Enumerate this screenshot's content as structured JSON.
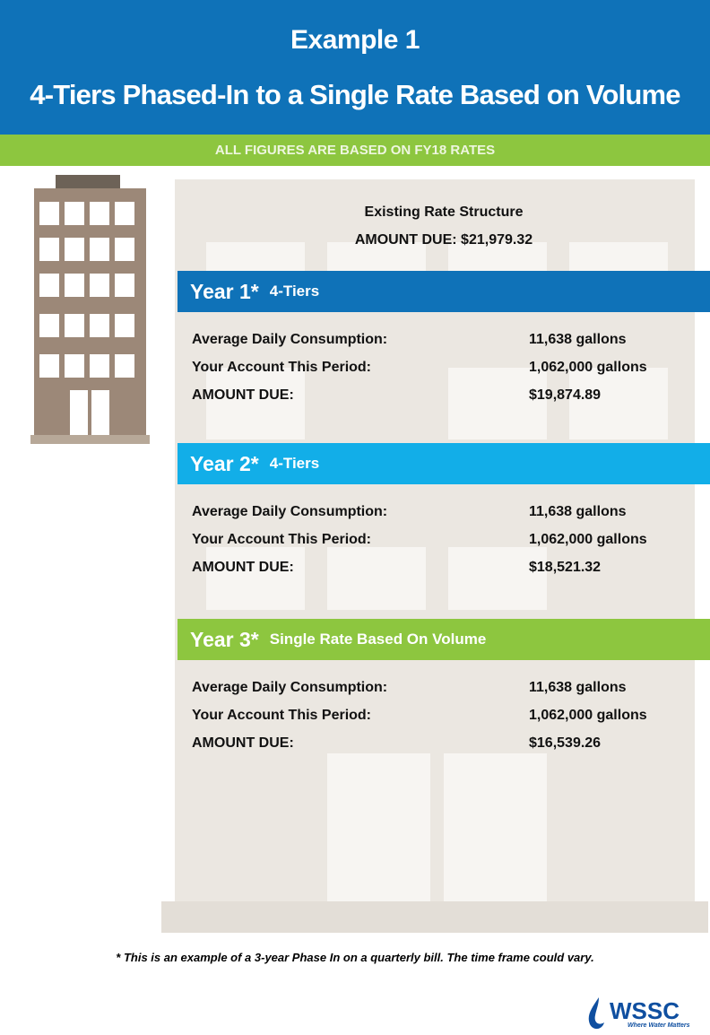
{
  "header": {
    "title": "Example 1",
    "subtitle": "4-Tiers Phased-In to a Single Rate Based on Volume"
  },
  "banner": "ALL FIGURES ARE BASED ON FY18 RATES",
  "existing": {
    "label": "Existing Rate Structure",
    "amount": "AMOUNT DUE:  $21,979.32"
  },
  "years": [
    {
      "year": "Year 1*",
      "plan": "4-Tiers",
      "color": "#0f72b8",
      "rows": [
        [
          "Average Daily Consumption:",
          "11,638 gallons"
        ],
        [
          "Your Account This Period:",
          "1,062,000 gallons"
        ],
        [
          "AMOUNT DUE:",
          "$19,874.89"
        ]
      ]
    },
    {
      "year": "Year 2*",
      "plan": "4-Tiers",
      "color": "#12aee8",
      "rows": [
        [
          "Average Daily Consumption:",
          "11,638 gallons"
        ],
        [
          "Your Account This Period:",
          "1,062,000 gallons"
        ],
        [
          "AMOUNT DUE:",
          "$18,521.32"
        ]
      ]
    },
    {
      "year": "Year 3*",
      "plan": "Single Rate Based On Volume",
      "color": "#8dc63f",
      "rows": [
        [
          "Average Daily Consumption:",
          "11,638 gallons"
        ],
        [
          "Your Account This Period:",
          "1,062,000 gallons"
        ],
        [
          "AMOUNT DUE:",
          "$16,539.26"
        ]
      ]
    }
  ],
  "footnote": "* This is an example of a 3-year Phase In on a quarterly bill. The time frame could vary.",
  "logo": {
    "name": "WSSC",
    "tagline": "Where Water Matters"
  }
}
